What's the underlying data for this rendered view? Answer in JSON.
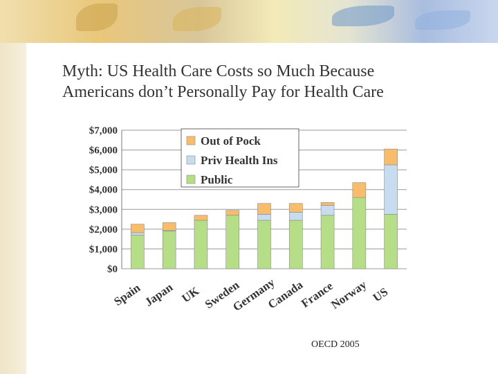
{
  "slide": {
    "title_line1": "Myth: US Health Care Costs so Much Because",
    "title_line2": "Americans don’t Personally Pay for Health Care",
    "source": "OECD 2005"
  },
  "colors": {
    "out_of_pocket": "#f7bd6b",
    "private_insurance": "#c7dcef",
    "public": "#b5de86"
  },
  "chart_data": {
    "type": "bar",
    "stacked": true,
    "categories": [
      "Spain",
      "Japan",
      "UK",
      "Sweden",
      "Germany",
      "Canada",
      "France",
      "Norway",
      "US"
    ],
    "series": [
      {
        "name": "Public",
        "values": [
          1700,
          1900,
          2450,
          2700,
          2450,
          2450,
          2700,
          3600,
          2750
        ]
      },
      {
        "name": "Priv Health Ins",
        "values": [
          120,
          30,
          0,
          0,
          300,
          400,
          500,
          0,
          2500
        ]
      },
      {
        "name": "Out of Pock",
        "values": [
          430,
          400,
          250,
          250,
          550,
          450,
          150,
          750,
          800
        ]
      }
    ],
    "yticks": [
      "$0",
      "$1,000",
      "$2,000",
      "$3,000",
      "$4,000",
      "$5,000",
      "$6,000",
      "$7,000"
    ],
    "ylim": [
      0,
      7000
    ],
    "legend_order": [
      "Out of Pock",
      "Priv Health Ins",
      "Public"
    ],
    "legend_position": "top-left",
    "grid": "horizontal"
  }
}
